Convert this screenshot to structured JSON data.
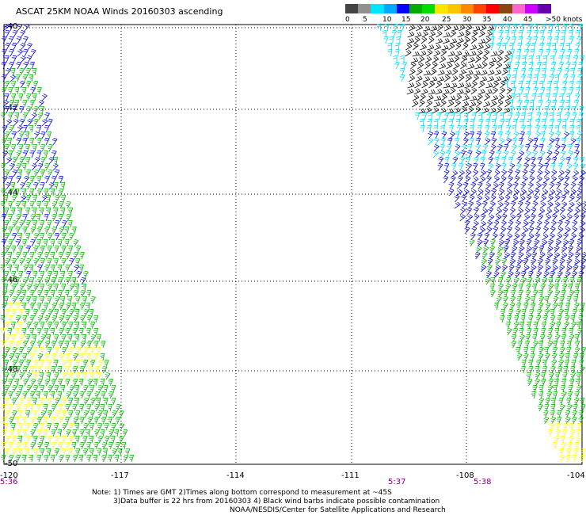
{
  "title": "ASCAT 25KM NOAA Winds 20160303 ascending",
  "legend": {
    "labels": [
      "0",
      "5",
      "10",
      "15",
      "20",
      "25",
      "30",
      "35",
      "40",
      "45",
      ">50 knots"
    ],
    "colors": [
      "#444444",
      "#909090",
      "#00e5ff",
      "#00a8ff",
      "#0000ff",
      "#00aa00",
      "#00dd00",
      "#ffe400",
      "#ffc400",
      "#ff8800",
      "#ff4400",
      "#ff0000",
      "#8b4513",
      "#ff66cc",
      "#cc00ff",
      "#6600aa"
    ]
  },
  "axes": {
    "lat_labels": [
      "-40",
      "-42",
      "-44",
      "-46",
      "-48",
      "-50"
    ],
    "lon_labels": [
      "-120",
      "-117",
      "-114",
      "-111",
      "-108",
      "-104"
    ],
    "times": [
      "5:36",
      "5:37",
      "5:38"
    ]
  },
  "wind_colors": {
    "black": "#000000",
    "cyan": "#00d8f0",
    "blue": "#0000dd",
    "green": "#00b400",
    "yellow": "#ffff00"
  },
  "notes": [
    "Note: 1) Times are GMT 2)Times along bottom correspond to measurement at ~45S",
    "3)Data buffer is 22 hrs from 20160303 4) Black wind barbs indicate possible contamination",
    "NOAA/NESDIS/Center for Satellite Applications and Research"
  ]
}
